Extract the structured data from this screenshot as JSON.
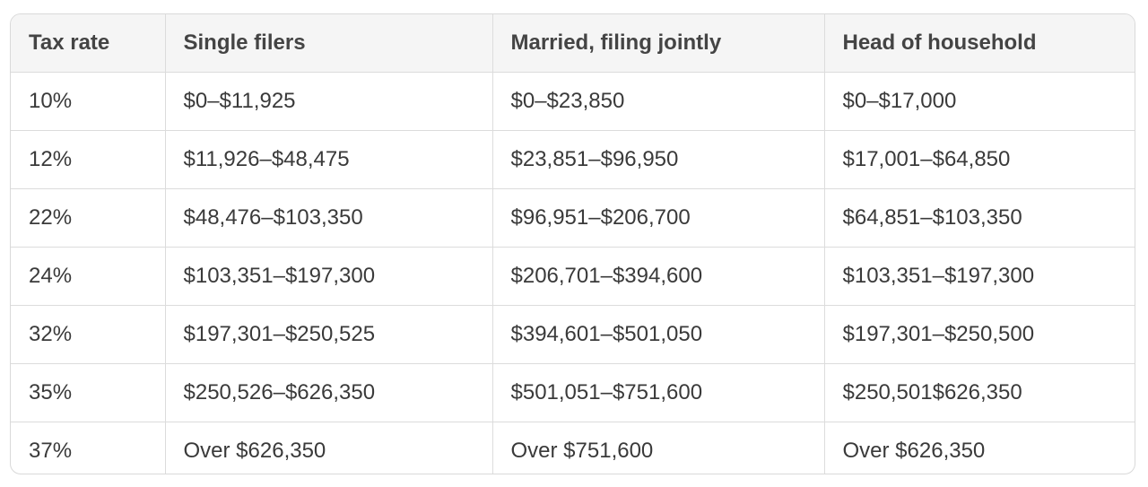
{
  "table": {
    "header": [
      "Tax rate",
      "Single filers",
      "Married, filing jointly",
      "Head of household"
    ],
    "rows": [
      [
        "10%",
        "$0–$11,925",
        "$0–$23,850",
        "$0–$17,000"
      ],
      [
        "12%",
        "$11,926–$48,475",
        "$23,851–$96,950",
        "$17,001–$64,850"
      ],
      [
        "22%",
        "$48,476–$103,350",
        "$96,951–$206,700",
        "$64,851–$103,350"
      ],
      [
        "24%",
        "$103,351–$197,300",
        "$206,701–$394,600",
        "$103,351–$197,300"
      ],
      [
        "32%",
        "$197,301–$250,525",
        "$394,601–$501,050",
        "$197,301–$250,500"
      ],
      [
        "35%",
        "$250,526–$626,350",
        "$501,051–$751,600",
        "$250,501$626,350"
      ],
      [
        "37%",
        "Over $626,350",
        "Over $751,600",
        "Over $626,350"
      ]
    ]
  }
}
